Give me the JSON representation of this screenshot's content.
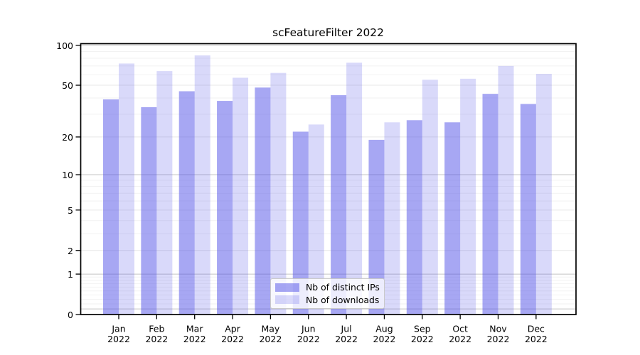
{
  "chart_data": {
    "type": "bar",
    "title": "scFeatureFilter 2022",
    "categories": [
      "Jan",
      "Feb",
      "Mar",
      "Apr",
      "May",
      "Jun",
      "Jul",
      "Aug",
      "Sep",
      "Oct",
      "Nov",
      "Dec"
    ],
    "category_year": "2022",
    "series": [
      {
        "name": "Nb of distinct IPs",
        "fill_opacity": 0.5,
        "values": [
          39,
          34,
          45,
          38,
          48,
          22,
          42,
          19,
          27,
          26,
          43,
          36
        ]
      },
      {
        "name": "Nb of downloads",
        "fill_opacity": 0.22,
        "values": [
          73,
          64,
          84,
          57,
          62,
          25,
          74,
          26,
          55,
          56,
          70,
          61
        ]
      }
    ],
    "bar_color": "#5050e8",
    "y_ticks": [
      0,
      1,
      2,
      5,
      10,
      20,
      50,
      100
    ],
    "ylim": [
      0,
      100
    ],
    "y_scale": "log1p",
    "grid": true,
    "legend_position": "lower center"
  },
  "colors": {
    "grid_major": "#c5c5c5",
    "grid_mid": "#e7e7e7",
    "grid_minor": "#f2f2f2",
    "spine": "#000000"
  }
}
